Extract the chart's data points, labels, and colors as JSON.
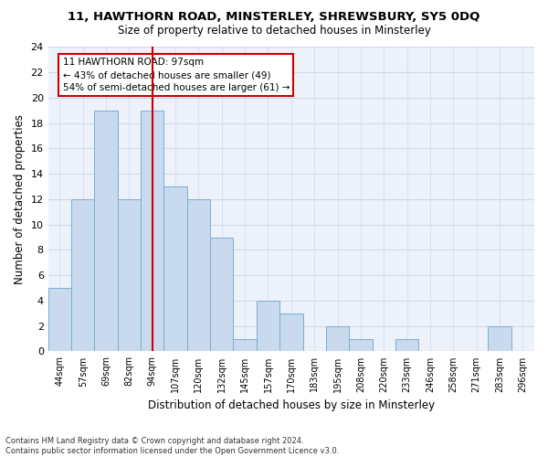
{
  "title1": "11, HAWTHORN ROAD, MINSTERLEY, SHREWSBURY, SY5 0DQ",
  "title2": "Size of property relative to detached houses in Minsterley",
  "xlabel": "Distribution of detached houses by size in Minsterley",
  "ylabel": "Number of detached properties",
  "categories": [
    "44sqm",
    "57sqm",
    "69sqm",
    "82sqm",
    "94sqm",
    "107sqm",
    "120sqm",
    "132sqm",
    "145sqm",
    "157sqm",
    "170sqm",
    "183sqm",
    "195sqm",
    "208sqm",
    "220sqm",
    "233sqm",
    "246sqm",
    "258sqm",
    "271sqm",
    "283sqm",
    "296sqm"
  ],
  "values": [
    5,
    12,
    19,
    12,
    19,
    13,
    12,
    9,
    1,
    4,
    3,
    0,
    2,
    1,
    0,
    1,
    0,
    0,
    0,
    2,
    0
  ],
  "bar_color": "#c9d9ee",
  "bar_edge_color": "#7aaed4",
  "highlight_index": 4,
  "highlight_line_color": "#cc0000",
  "ylim": [
    0,
    24
  ],
  "yticks": [
    0,
    2,
    4,
    6,
    8,
    10,
    12,
    14,
    16,
    18,
    20,
    22,
    24
  ],
  "annotation_text": "11 HAWTHORN ROAD: 97sqm\n← 43% of detached houses are smaller (49)\n54% of semi-detached houses are larger (61) →",
  "annotation_box_color": "#ffffff",
  "annotation_box_edge": "#cc0000",
  "footer": "Contains HM Land Registry data © Crown copyright and database right 2024.\nContains public sector information licensed under the Open Government Licence v3.0.",
  "bg_color": "#edf2fa",
  "grid_color": "#d0d8e8"
}
